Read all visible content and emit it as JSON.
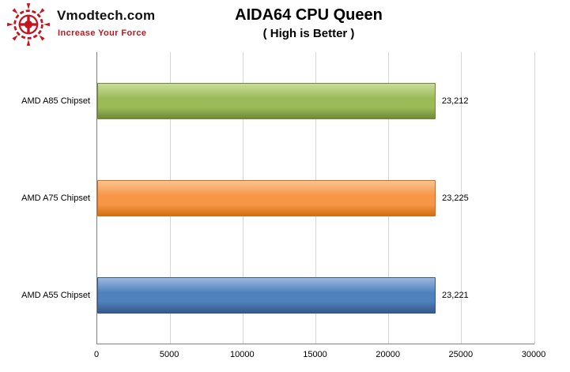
{
  "logo": {
    "brand": "Vmodtech.com",
    "tagline": "Increase Your Force",
    "accent_color": "#c41420"
  },
  "header": {
    "title": "AIDA64 CPU Queen",
    "subtitle": "( High is Better )"
  },
  "chart_data": {
    "type": "bar",
    "orientation": "horizontal",
    "title": "AIDA64 CPU Queen",
    "subtitle": "( High is Better )",
    "categories": [
      "AMD A85 Chipset",
      "AMD A75 Chipset",
      "AMD A55 Chipset"
    ],
    "values": [
      23212,
      23225,
      23221
    ],
    "value_labels": [
      "23,212",
      "23,225",
      "23,221"
    ],
    "bar_colors": [
      "#9bbb59",
      "#f79646",
      "#4f81bd"
    ],
    "bar_colors_light": [
      "#c9dc9a",
      "#fbc392",
      "#9ab8dd"
    ],
    "bar_colors_dark": [
      "#6f8a37",
      "#d26e13",
      "#33598a"
    ],
    "xlabel": "",
    "ylabel": "",
    "xlim": [
      0,
      30000
    ],
    "xticks": [
      0,
      5000,
      10000,
      15000,
      20000,
      25000,
      30000
    ],
    "xtick_labels": [
      "0",
      "5000",
      "10000",
      "15000",
      "20000",
      "25000",
      "30000"
    ],
    "grid": true,
    "legend": false
  }
}
